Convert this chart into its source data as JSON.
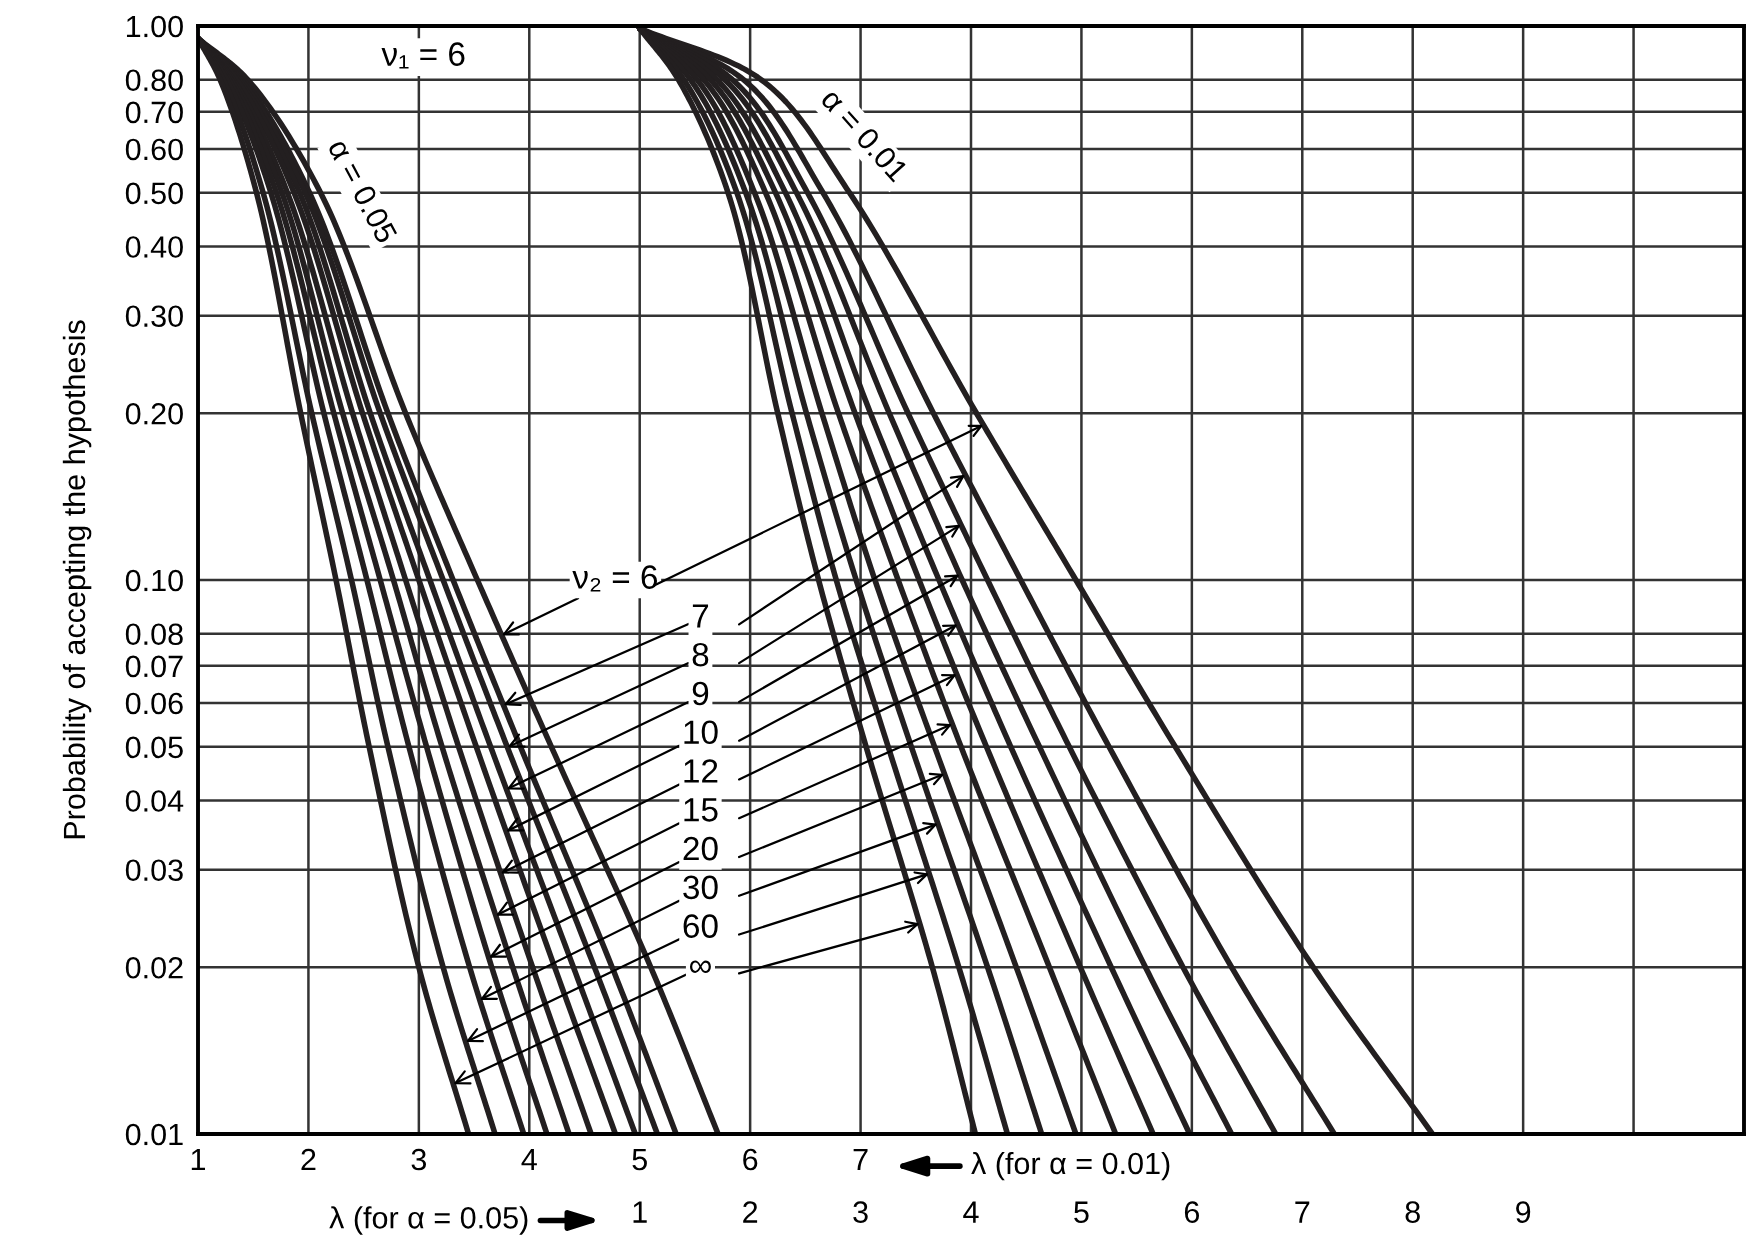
{
  "chart_data": {
    "type": "line",
    "ylabel": "Probability of accepting the hypothesis",
    "xlabel": "λ (for α = 0.01)",
    "x2label": "λ (for α = 0.05)",
    "log": "y",
    "grid": true,
    "xlim": [
      1,
      15
    ],
    "xticks": [
      1,
      2,
      3,
      4,
      5,
      6,
      7,
      {
        "value": 8,
        "label": null
      },
      {
        "value": 9,
        "label": null
      },
      {
        "value": 10,
        "label": null
      },
      {
        "value": 11,
        "label": null
      },
      {
        "value": 12,
        "label": null
      },
      {
        "value": 13,
        "label": null
      },
      {
        "value": 14,
        "label": null
      }
    ],
    "x2lim": [
      -3,
      11
    ],
    "x2ticks": [
      1,
      2,
      3,
      4,
      5,
      6,
      7,
      8,
      9
    ],
    "ylim": [
      0.01,
      1.0
    ],
    "yticks": [
      {
        "value": 1.0,
        "label": "1.00"
      },
      {
        "value": 0.8,
        "label": "0.80"
      },
      {
        "value": 0.7,
        "label": "0.70"
      },
      {
        "value": 0.6,
        "label": "0.60"
      },
      {
        "value": 0.5,
        "label": "0.50"
      },
      {
        "value": 0.4,
        "label": "0.40"
      },
      {
        "value": 0.3,
        "label": "0.30"
      },
      {
        "value": 0.2,
        "label": "0.20"
      },
      {
        "value": 0.1,
        "label": "0.10"
      },
      {
        "value": 0.08,
        "label": "0.08"
      },
      {
        "value": 0.07,
        "label": "0.07"
      },
      {
        "value": 0.06,
        "label": "0.06"
      },
      {
        "value": 0.05,
        "label": "0.05"
      },
      {
        "value": 0.04,
        "label": "0.04"
      },
      {
        "value": 0.03,
        "label": "0.03"
      },
      {
        "value": 0.02,
        "label": "0.02"
      },
      {
        "value": 0.01,
        "label": "0.01"
      }
    ],
    "annotations": [
      "ν₁ = 6",
      "α = 0.05",
      "α = 0.01"
    ],
    "series": [
      {
        "name": "ν₂ = 6",
        "color": "#231f20",
        "x": [
          1,
          1.45,
          2.11,
          2.88,
          3.53,
          4.2,
          5.1,
          5.71
        ],
        "values": [
          0.95,
          0.8,
          0.5,
          0.2,
          0.1,
          0.05,
          0.02,
          0.01
        ]
      },
      {
        "name": "7",
        "color": "#231f20",
        "x": [
          1,
          1.41,
          2.01,
          2.72,
          3.31,
          3.92,
          4.75,
          5.33
        ],
        "values": [
          0.95,
          0.8,
          0.5,
          0.2,
          0.1,
          0.05,
          0.02,
          0.01
        ]
      },
      {
        "name": "8",
        "color": "#231f20",
        "x": [
          1,
          1.39,
          1.97,
          2.65,
          3.22,
          3.8,
          4.59,
          5.16
        ],
        "values": [
          0.95,
          0.8,
          0.5,
          0.2,
          0.1,
          0.05,
          0.02,
          0.01
        ]
      },
      {
        "name": "9",
        "color": "#231f20",
        "x": [
          1,
          1.37,
          1.92,
          2.56,
          3.1,
          3.65,
          4.4,
          4.96
        ],
        "values": [
          0.95,
          0.8,
          0.5,
          0.2,
          0.1,
          0.05,
          0.02,
          0.01
        ]
      },
      {
        "name": "10",
        "color": "#231f20",
        "x": [
          1,
          1.35,
          1.87,
          2.49,
          3.0,
          3.52,
          4.23,
          4.78
        ],
        "values": [
          0.95,
          0.8,
          0.5,
          0.2,
          0.1,
          0.05,
          0.02,
          0.01
        ]
      },
      {
        "name": "12",
        "color": "#231f20",
        "x": [
          1,
          1.32,
          1.81,
          2.4,
          2.88,
          3.36,
          4.03,
          4.56
        ],
        "values": [
          0.95,
          0.8,
          0.5,
          0.2,
          0.1,
          0.05,
          0.02,
          0.01
        ]
      },
      {
        "name": "15",
        "color": "#231f20",
        "x": [
          1,
          1.3,
          1.76,
          2.31,
          2.77,
          3.21,
          3.85,
          4.36
        ],
        "values": [
          0.95,
          0.8,
          0.5,
          0.2,
          0.1,
          0.05,
          0.02,
          0.01
        ]
      },
      {
        "name": "20",
        "color": "#231f20",
        "x": [
          1,
          1.28,
          1.71,
          2.23,
          2.65,
          3.07,
          3.66,
          4.16
        ],
        "values": [
          0.95,
          0.8,
          0.5,
          0.2,
          0.1,
          0.05,
          0.02,
          0.01
        ]
      },
      {
        "name": "30",
        "color": "#231f20",
        "x": [
          1,
          1.26,
          1.66,
          2.14,
          2.53,
          2.91,
          3.46,
          3.95
        ],
        "values": [
          0.95,
          0.8,
          0.5,
          0.2,
          0.1,
          0.05,
          0.02,
          0.01
        ]
      },
      {
        "name": "60",
        "color": "#231f20",
        "x": [
          1,
          1.23,
          1.59,
          2.03,
          2.39,
          2.72,
          3.22,
          3.69
        ],
        "values": [
          0.95,
          0.8,
          0.5,
          0.2,
          0.1,
          0.05,
          0.02,
          0.01
        ]
      },
      {
        "name": "∞",
        "color": "#231f20",
        "x": [
          1,
          1.2,
          1.53,
          1.93,
          2.25,
          2.55,
          3.0,
          3.45
        ],
        "values": [
          0.95,
          0.8,
          0.5,
          0.2,
          0.1,
          0.05,
          0.02,
          0.01
        ]
      },
      {
        "color": "#231f20",
        "x": [
          5,
          6.1,
          6.9,
          8.05,
          8.95,
          9.85,
          11.1,
          12.18
        ],
        "values": [
          0.99,
          0.8,
          0.5,
          0.2,
          0.1,
          0.05,
          0.02,
          0.01
        ]
      },
      {
        "color": "#231f20",
        "x": [
          5,
          5.94,
          6.66,
          7.66,
          8.45,
          9.25,
          10.36,
          11.29
        ],
        "values": [
          0.99,
          0.8,
          0.5,
          0.2,
          0.1,
          0.05,
          0.02,
          0.01
        ]
      },
      {
        "color": "#231f20",
        "x": [
          5,
          5.84,
          6.52,
          7.43,
          8.15,
          8.89,
          9.92,
          10.76
        ],
        "values": [
          0.99,
          0.8,
          0.5,
          0.2,
          0.1,
          0.05,
          0.02,
          0.01
        ]
      },
      {
        "color": "#231f20",
        "x": [
          5,
          5.77,
          6.42,
          7.26,
          7.92,
          8.62,
          9.58,
          10.36
        ],
        "values": [
          0.99,
          0.8,
          0.5,
          0.2,
          0.1,
          0.05,
          0.02,
          0.01
        ]
      },
      {
        "color": "#231f20",
        "x": [
          5,
          5.7,
          6.32,
          7.09,
          7.71,
          8.36,
          9.27,
          9.98
        ],
        "values": [
          0.99,
          0.8,
          0.5,
          0.2,
          0.1,
          0.05,
          0.02,
          0.01
        ]
      },
      {
        "color": "#231f20",
        "x": [
          5,
          5.64,
          6.23,
          6.95,
          7.53,
          8.14,
          8.99,
          9.65
        ],
        "values": [
          0.99,
          0.8,
          0.5,
          0.2,
          0.1,
          0.05,
          0.02,
          0.01
        ]
      },
      {
        "color": "#231f20",
        "x": [
          5,
          5.58,
          6.14,
          6.8,
          7.34,
          7.91,
          8.71,
          9.31
        ],
        "values": [
          0.99,
          0.8,
          0.5,
          0.2,
          0.1,
          0.05,
          0.02,
          0.01
        ]
      },
      {
        "color": "#231f20",
        "x": [
          5,
          5.52,
          6.04,
          6.65,
          7.13,
          7.67,
          8.41,
          8.95
        ],
        "values": [
          0.99,
          0.8,
          0.5,
          0.2,
          0.1,
          0.05,
          0.02,
          0.01
        ]
      },
      {
        "color": "#231f20",
        "x": [
          5,
          5.46,
          5.96,
          6.51,
          6.96,
          7.46,
          8.15,
          8.64
        ],
        "values": [
          0.99,
          0.8,
          0.5,
          0.2,
          0.1,
          0.05,
          0.02,
          0.01
        ]
      },
      {
        "color": "#231f20",
        "x": [
          5,
          5.4,
          5.88,
          6.38,
          6.78,
          7.25,
          7.89,
          8.33
        ],
        "values": [
          0.99,
          0.8,
          0.5,
          0.2,
          0.1,
          0.05,
          0.02,
          0.01
        ]
      },
      {
        "color": "#231f20",
        "x": [
          5,
          5.35,
          5.8,
          6.25,
          6.62,
          7.05,
          7.65,
          8.04
        ],
        "values": [
          0.99,
          0.8,
          0.5,
          0.2,
          0.1,
          0.05,
          0.02,
          0.01
        ]
      }
    ]
  }
}
